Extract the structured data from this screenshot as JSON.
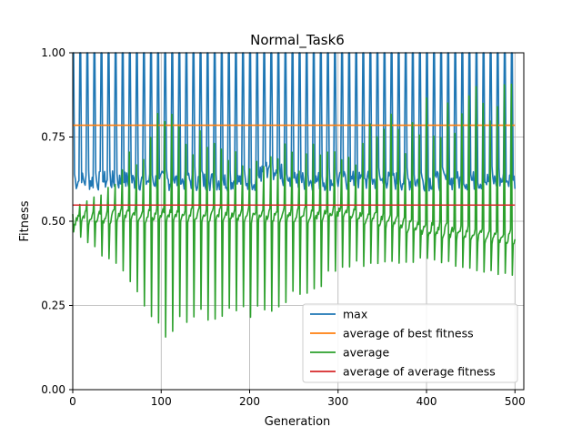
{
  "chart_data": {
    "type": "line",
    "title": "Normal_Task6",
    "xlabel": "Generation",
    "ylabel": "Fitness",
    "xlim": [
      0,
      510
    ],
    "ylim": [
      0.0,
      1.0
    ],
    "x_ticks": [
      0,
      100,
      200,
      300,
      400,
      500
    ],
    "y_ticks": [
      0.0,
      0.25,
      0.5,
      0.75,
      1.0
    ],
    "x_tick_labels": [
      "0",
      "100",
      "200",
      "300",
      "400",
      "500"
    ],
    "y_tick_labels": [
      "0.00",
      "0.25",
      "0.50",
      "0.75",
      "1.00"
    ],
    "grid": true,
    "legend_position": "lower-right",
    "n_generations": 500,
    "cycle_length": 8,
    "series": [
      {
        "name": "max",
        "color": "#1f77b4",
        "kind": "oscillating",
        "baseline": 0.61,
        "peak": 1.0,
        "peak_phase": 0,
        "description_values": "cycles between ~0.59-0.66 and 1.0 peaks"
      },
      {
        "name": "average of best fitness",
        "color": "#ff7f0e",
        "kind": "constant",
        "value": 0.785
      },
      {
        "name": "average",
        "color": "#2ca02c",
        "kind": "oscillating",
        "keyframes": [
          {
            "x": 0,
            "base": 0.49,
            "peak": 0.53,
            "dip": 0.47
          },
          {
            "x": 60,
            "base": 0.5,
            "peak": 0.72,
            "dip": 0.33
          },
          {
            "x": 100,
            "base": 0.5,
            "peak": 0.85,
            "dip": 0.15
          },
          {
            "x": 150,
            "base": 0.5,
            "peak": 0.8,
            "dip": 0.2
          },
          {
            "x": 200,
            "base": 0.5,
            "peak": 0.74,
            "dip": 0.2
          },
          {
            "x": 280,
            "base": 0.5,
            "peak": 0.74,
            "dip": 0.3
          },
          {
            "x": 300,
            "base": 0.51,
            "peak": 0.75,
            "dip": 0.36
          },
          {
            "x": 400,
            "base": 0.46,
            "peak": 0.88,
            "dip": 0.38
          },
          {
            "x": 500,
            "base": 0.43,
            "peak": 0.99,
            "dip": 0.33
          }
        ]
      },
      {
        "name": "average of average fitness",
        "color": "#d62728",
        "kind": "constant",
        "value": 0.548
      }
    ],
    "legend": [
      "max",
      "average of best fitness",
      "average",
      "average of average fitness"
    ]
  }
}
